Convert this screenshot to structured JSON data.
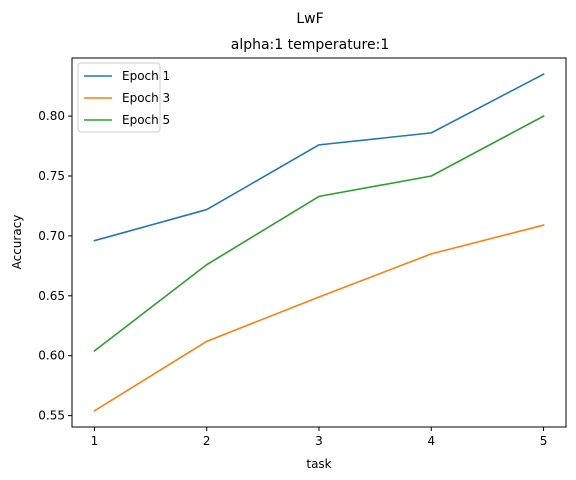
{
  "chart_data": {
    "type": "line",
    "suptitle": "LwF",
    "title": "alpha:1 temperature:1",
    "xlabel": "task",
    "ylabel": "Accuracy",
    "x": [
      1,
      2,
      3,
      4,
      5
    ],
    "xticks": [
      "1",
      "2",
      "3",
      "4",
      "5"
    ],
    "xlim": [
      0.8,
      5.2
    ],
    "yticks": [
      "0.55",
      "0.60",
      "0.65",
      "0.70",
      "0.75",
      "0.80"
    ],
    "ytick_values": [
      0.55,
      0.6,
      0.65,
      0.7,
      0.75,
      0.8
    ],
    "ylim": [
      0.5405,
      0.8485
    ],
    "grid": false,
    "legend_position": "top-left",
    "series": [
      {
        "name": "Epoch 1",
        "color": "#1f77b4",
        "values": [
          0.696,
          0.722,
          0.776,
          0.786,
          0.835
        ]
      },
      {
        "name": "Epoch 3",
        "color": "#ff7f0e",
        "values": [
          0.554,
          0.612,
          0.649,
          0.685,
          0.709
        ]
      },
      {
        "name": "Epoch 5",
        "color": "#2ca02c",
        "values": [
          0.604,
          0.676,
          0.733,
          0.75,
          0.8
        ]
      }
    ]
  }
}
